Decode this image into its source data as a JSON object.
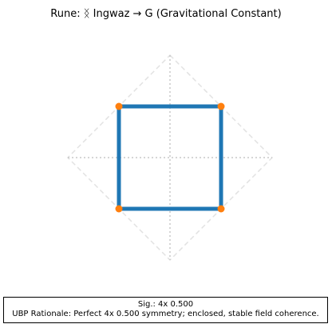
{
  "figure": {
    "title": "Rune: ᛝ Ingwaz → G (Gravitational Constant)",
    "caption": {
      "line1": "Sig.: 4x 0.500",
      "line2": "UBP Rationale: Perfect 4x 0.500 symmetry; enclosed, stable field coherence."
    }
  },
  "rune": {
    "name": "Ingwaz",
    "maps_to": "G (Gravitational Constant)",
    "vertices": [
      [
        -0.5,
        0.5
      ],
      [
        0.5,
        0.5
      ],
      [
        0.5,
        -0.5
      ],
      [
        -0.5,
        -0.5
      ]
    ],
    "closed": true,
    "guide_radius": 1.0
  },
  "colors": {
    "stroke": "#1f77b4",
    "vertex": "#ff7f0e",
    "guide": "#c8c8c8",
    "guide_diamond": "#e2e2e2",
    "caption_border": "#000000"
  }
}
